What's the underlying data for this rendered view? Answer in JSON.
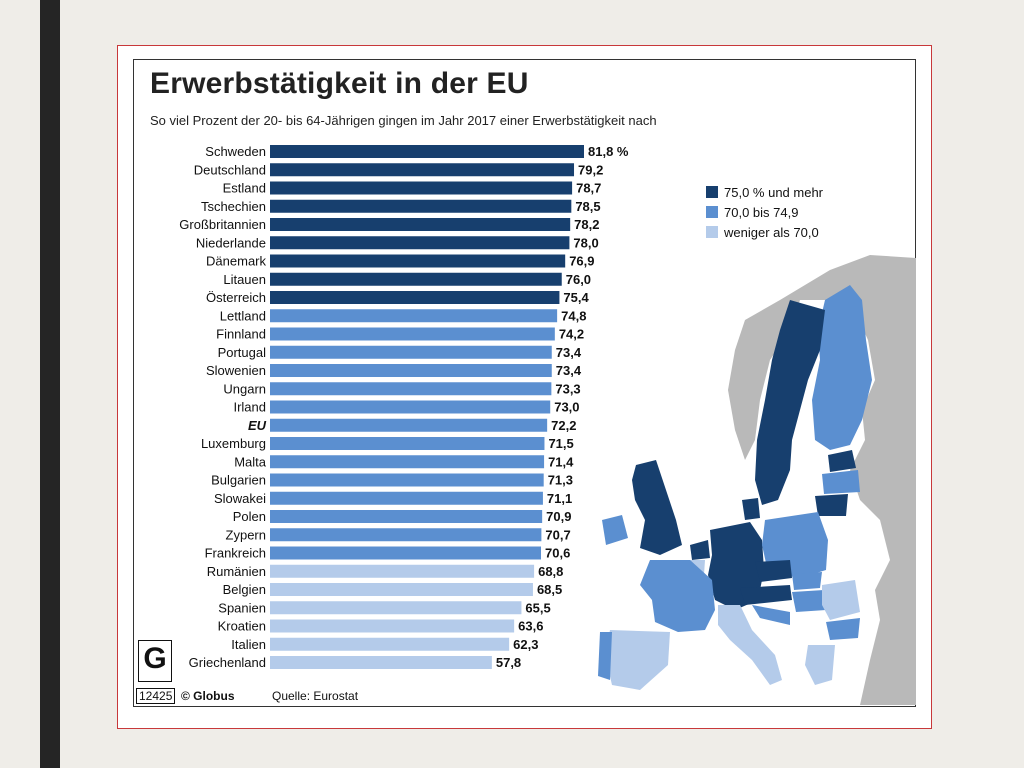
{
  "header": {
    "title": "Erwerbstätigkeit in der EU",
    "subtitle": "So viel Prozent der 20- bis 64-Jährigen gingen im Jahr 2017 einer Erwerbstätigkeit nach"
  },
  "colors": {
    "high": "#173f6e",
    "mid": "#5b8fd0",
    "low": "#b4cbea",
    "nonEU": "#b9b9b9"
  },
  "legend": [
    {
      "label": "75,0 % und mehr",
      "class": "high"
    },
    {
      "label": "70,0 bis 74,9",
      "class": "mid"
    },
    {
      "label": "weniger als 70,0",
      "class": "low"
    }
  ],
  "chart_data": {
    "type": "bar",
    "orientation": "horizontal",
    "title": "Erwerbstätigkeit in der EU",
    "subtitle": "So viel Prozent der 20- bis 64-Jährigen gingen im Jahr 2017 einer Erwerbstätigkeit nach",
    "value_unit": "%",
    "categories": [
      "Schweden",
      "Deutschland",
      "Estland",
      "Tschechien",
      "Großbritannien",
      "Niederlande",
      "Dänemark",
      "Litauen",
      "Österreich",
      "Lettland",
      "Finnland",
      "Portugal",
      "Slowenien",
      "Ungarn",
      "Irland",
      "EU",
      "Luxemburg",
      "Malta",
      "Bulgarien",
      "Slowakei",
      "Polen",
      "Zypern",
      "Frankreich",
      "Rumänien",
      "Belgien",
      "Spanien",
      "Kroatien",
      "Italien",
      "Griechenland"
    ],
    "values": [
      81.8,
      79.2,
      78.7,
      78.5,
      78.2,
      78.0,
      76.9,
      76.0,
      75.4,
      74.8,
      74.2,
      73.4,
      73.4,
      73.3,
      73.0,
      72.2,
      71.5,
      71.4,
      71.3,
      71.1,
      70.9,
      70.7,
      70.6,
      68.8,
      68.5,
      65.5,
      63.6,
      62.3,
      57.8
    ],
    "value_labels": [
      "81,8 %",
      "79,2",
      "78,7",
      "78,5",
      "78,2",
      "78,0",
      "76,9",
      "76,0",
      "75,4",
      "74,8",
      "74,2",
      "73,4",
      "73,4",
      "73,3",
      "73,0",
      "72,2",
      "71,5",
      "71,4",
      "71,3",
      "71,1",
      "70,9",
      "70,7",
      "70,6",
      "68,8",
      "68,5",
      "65,5",
      "63,6",
      "62,3",
      "57,8"
    ],
    "color_classes": [
      "high",
      "high",
      "high",
      "high",
      "high",
      "high",
      "high",
      "high",
      "high",
      "mid",
      "mid",
      "mid",
      "mid",
      "mid",
      "mid",
      "mid",
      "mid",
      "mid",
      "mid",
      "mid",
      "mid",
      "mid",
      "mid",
      "low",
      "low",
      "low",
      "low",
      "low",
      "low"
    ],
    "xlim": [
      0,
      100
    ],
    "grid": false
  },
  "footer": {
    "logo_letter": "G",
    "code": "12425",
    "copyright": "© Globus",
    "source": "Quelle: Eurostat"
  }
}
